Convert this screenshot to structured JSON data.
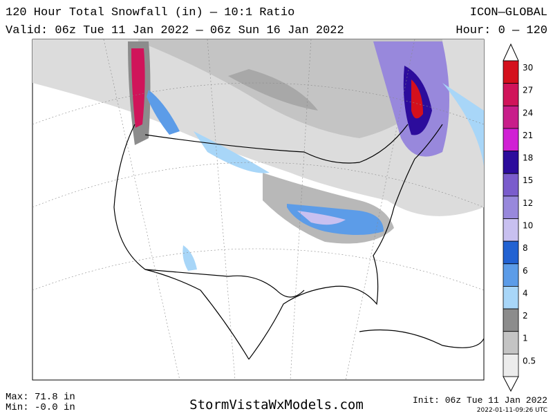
{
  "header": {
    "title": "120 Hour Total Snowfall (in) — 10:1 Ratio",
    "model": "ICON—GLOBAL",
    "valid": "Valid: 06z Tue 11 Jan 2022 — 06z Sun 16 Jan 2022",
    "hours": "Hour: 0 — 120"
  },
  "colorbar": {
    "levels": [
      {
        "label": "30",
        "color": "#d4101c"
      },
      {
        "label": "27",
        "color": "#d0145a"
      },
      {
        "label": "24",
        "color": "#c81e8a"
      },
      {
        "label": "21",
        "color": "#d020d4"
      },
      {
        "label": "18",
        "color": "#2c0c9c"
      },
      {
        "label": "15",
        "color": "#7a5ccc"
      },
      {
        "label": "12",
        "color": "#9888dc"
      },
      {
        "label": "10",
        "color": "#c8c0f0"
      },
      {
        "label": "8",
        "color": "#2262d2"
      },
      {
        "label": "6",
        "color": "#5c9ce8"
      },
      {
        "label": "4",
        "color": "#a8d6f8"
      },
      {
        "label": "2",
        "color": "#8c8c8c"
      },
      {
        "label": "1",
        "color": "#c4c4c4"
      },
      {
        "label": "0.5",
        "color": "#ececec"
      }
    ]
  },
  "footer": {
    "max": "Max: 71.8 in",
    "min": "Min: -0.0 in",
    "site": "StormVistaWxModels.com",
    "init": "Init: 06z Tue 11 Jan 2022",
    "stamp": "2022-01-11-09:26 UTC"
  }
}
